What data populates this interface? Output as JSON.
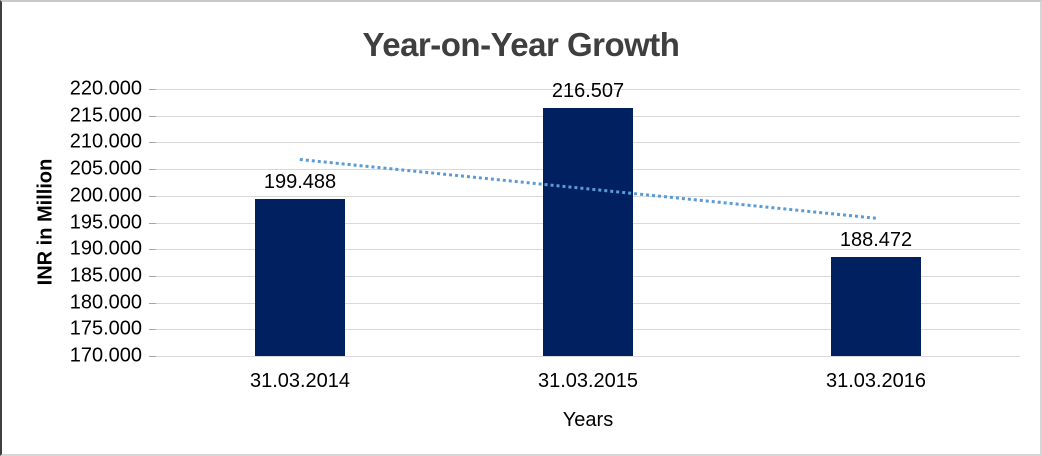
{
  "chart_data": {
    "type": "bar",
    "title": "Year-on-Year Growth",
    "xlabel": "Years",
    "ylabel": "INR in Million",
    "categories": [
      "31.03.2014",
      "31.03.2015",
      "31.03.2016"
    ],
    "values": [
      199.488,
      216.507,
      188.472
    ],
    "value_labels": [
      "199.488",
      "216.507",
      "188.472"
    ],
    "ylim": [
      170,
      220
    ],
    "ytick_step": 5,
    "ytick_labels": [
      "220.000",
      "215.000",
      "210.000",
      "205.000",
      "200.000",
      "195.000",
      "190.000",
      "185.000",
      "180.000",
      "175.000",
      "170.000"
    ],
    "grid": true,
    "legend": false,
    "trendline": {
      "type": "linear",
      "style": "dotted",
      "start_value": 207.0,
      "end_value": 196.0
    },
    "colors": {
      "bar": "#002060",
      "trendline": "#5B9BD5",
      "gridline": "#D9D9D9",
      "tick_mark": "#A6A6A6",
      "title_text": "#3F3F3F",
      "axis_text": "#000000"
    }
  }
}
